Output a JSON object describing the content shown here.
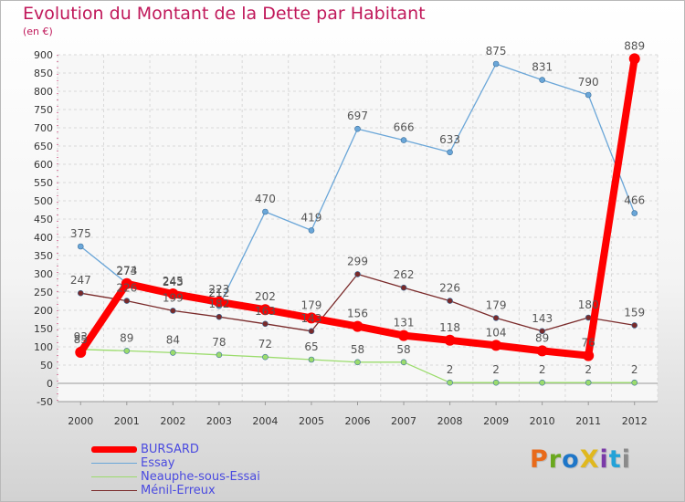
{
  "title": "Evolution du Montant de la Dette par Habitant",
  "subtitle": "(en €)",
  "logo": {
    "text": "ProXiti",
    "colors": [
      "#e86a1a",
      "#6aa81e",
      "#1e76c8",
      "#e0b81e",
      "#7a3aa8",
      "#22a2d8",
      "#8a8a8a"
    ]
  },
  "chart_data": {
    "type": "line",
    "x": [
      "2000",
      "2001",
      "2002",
      "2003",
      "2004",
      "2005",
      "2006",
      "2007",
      "2008",
      "2009",
      "2010",
      "2011",
      "2012"
    ],
    "ylim": [
      -50,
      900
    ],
    "yticks": [
      -50,
      0,
      50,
      100,
      150,
      200,
      250,
      300,
      350,
      400,
      450,
      500,
      550,
      600,
      650,
      700,
      750,
      800,
      850,
      900
    ],
    "grid": true,
    "legend_position": "bottom-left",
    "series": [
      {
        "name": "BURSARD",
        "color": "#ff0000",
        "values": [
          85,
          273,
          245,
          223,
          202,
          179,
          156,
          131,
          118,
          104,
          89,
          76,
          889
        ],
        "labels": [
          "85",
          "273",
          "245",
          "223",
          "202",
          "179",
          "156",
          "131",
          "118",
          "104",
          "89",
          "76",
          "889"
        ]
      },
      {
        "name": "Essay",
        "color": "#6aa6d8",
        "values": [
          375,
          274,
          243,
          212,
          470,
          419,
          697,
          666,
          633,
          875,
          831,
          790,
          466
        ],
        "labels": [
          "375",
          "274",
          "243",
          "212",
          "470",
          "419",
          "697",
          "666",
          "633",
          "875",
          "831",
          "790",
          "466"
        ]
      },
      {
        "name": "Neauphe-sous-Essai",
        "color": "#9bdc6c",
        "values": [
          93,
          89,
          84,
          78,
          72,
          65,
          58,
          58,
          2,
          2,
          2,
          2,
          2
        ],
        "labels": [
          "93",
          "89",
          "84",
          "78",
          "72",
          "65",
          "58",
          "58",
          "2",
          "2",
          "2",
          "2",
          "2"
        ]
      },
      {
        "name": "Ménil-Erreux",
        "color": "#7a2a2a",
        "values": [
          247,
          226,
          199,
          182,
          163,
          143,
          299,
          262,
          226,
          179,
          143,
          180,
          159
        ],
        "labels": [
          "247",
          "226",
          "199",
          "182",
          "163",
          "143",
          "299",
          "262",
          "226",
          "179",
          "143",
          "180",
          "159"
        ]
      }
    ]
  }
}
